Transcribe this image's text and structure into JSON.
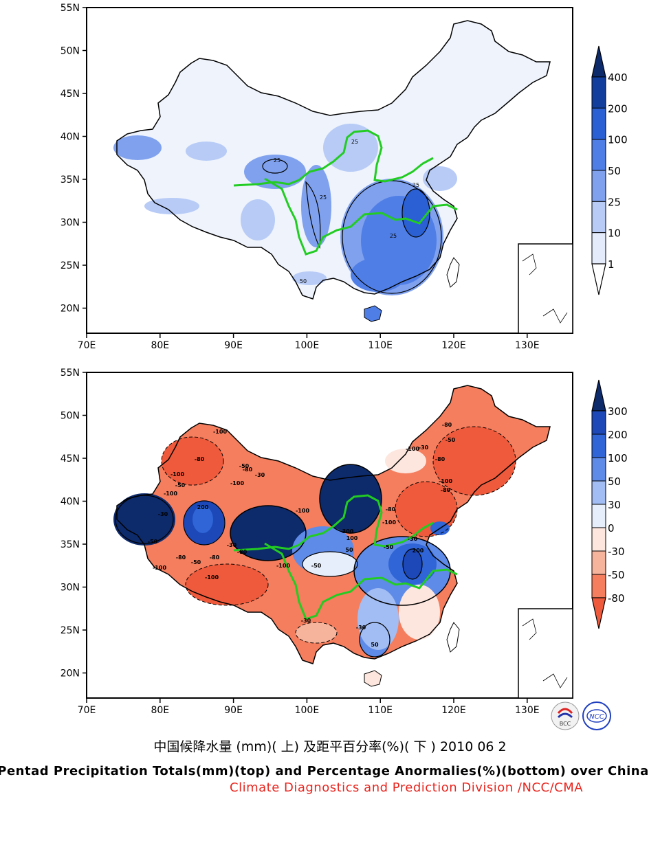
{
  "figure": {
    "title_cn": "中国候降水量 (mm)( 上) 及距平百分率(%)( 下 ) 2010 06 2",
    "title_en": "Pentad Precipitation Totals(mm)(top) and Percentage Anormalies(%)(bottom) over China",
    "credit": "Climate Diagnostics and Prediction Division /NCC/CMA",
    "logos": [
      "BCC",
      "NCC"
    ]
  },
  "axes": {
    "lat_labels": [
      "55N",
      "50N",
      "45N",
      "40N",
      "35N",
      "30N",
      "25N",
      "20N"
    ],
    "lon_labels": [
      "70E",
      "80E",
      "90E",
      "100E",
      "110E",
      "120E",
      "130E"
    ]
  },
  "top_map": {
    "legend": [
      "400",
      "200",
      "100",
      "50",
      "25",
      "10",
      "1"
    ],
    "legend_colors": [
      "#0d2a6b",
      "#123f9e",
      "#2a60d4",
      "#4f7ee6",
      "#7fa1ee",
      "#b7cbf6",
      "#e4ecfb",
      "#ffffff"
    ],
    "contour_labels": [
      "25",
      "25",
      "25",
      "25",
      "50",
      "25"
    ]
  },
  "bottom_map": {
    "legend": [
      "300",
      "200",
      "100",
      "50",
      "30",
      "0",
      "-30",
      "-50",
      "-80"
    ],
    "legend_colors": [
      "#0d2a6b",
      "#1c48b8",
      "#2f65d6",
      "#5f8be8",
      "#a2bdf3",
      "#e6eefc",
      "#fde6de",
      "#f7b49d",
      "#f47e5e",
      "#ee5a3b"
    ],
    "contour_labels": [
      "-100",
      "-80",
      "-100",
      "-50",
      "-30",
      "-80",
      "-100",
      "-50",
      "-100",
      "200",
      "-30",
      "-80",
      "-100",
      "-50",
      "-80",
      "-100",
      "300",
      "-100",
      "-80",
      "-100",
      "-50",
      "-30",
      "-80",
      "-100",
      "-80",
      "-30",
      "-50",
      "-80",
      "-100",
      "200",
      "100",
      "50",
      "-100",
      "-50",
      "-30",
      "-80",
      "-50",
      "-30",
      "-30",
      "50"
    ]
  }
}
